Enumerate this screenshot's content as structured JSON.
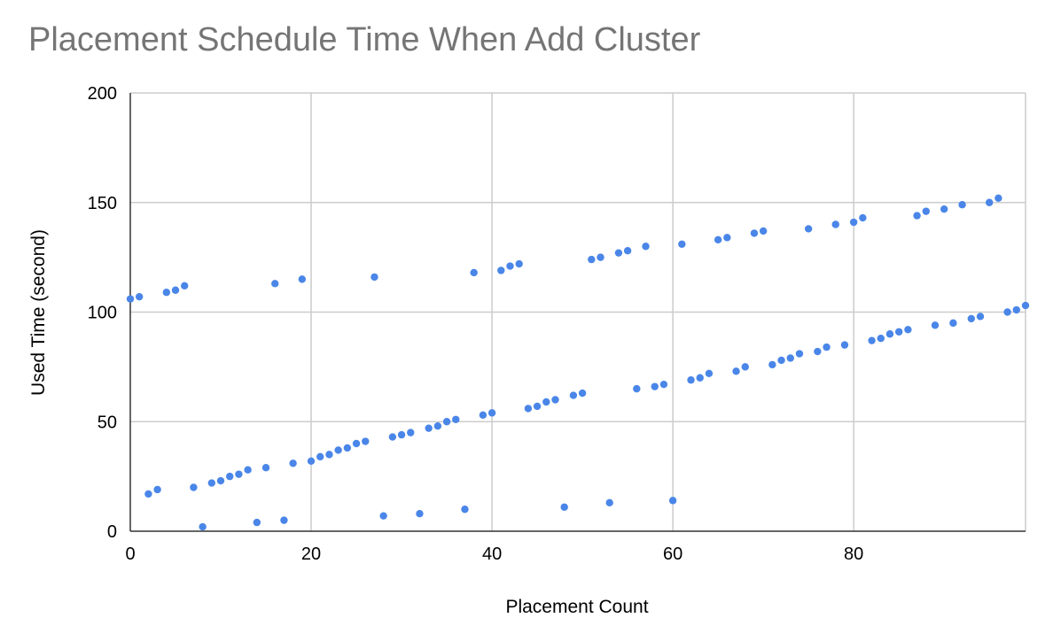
{
  "chart_data": {
    "type": "scatter",
    "title": "Placement Schedule Time When Add Cluster",
    "xlabel": "Placement Count",
    "ylabel": "Used Time (second)",
    "xlim": [
      0,
      99
    ],
    "ylim": [
      0,
      200
    ],
    "x_ticks": [
      "0",
      "20",
      "40",
      "60",
      "80"
    ],
    "y_ticks": [
      "0",
      "50",
      "100",
      "150",
      "200"
    ],
    "grid": true,
    "point_color": "#4a86e8",
    "series": [
      {
        "points": [
          [
            0,
            106
          ],
          [
            1,
            107
          ],
          [
            2,
            17
          ],
          [
            3,
            19
          ],
          [
            4,
            109
          ],
          [
            5,
            110
          ],
          [
            6,
            112
          ],
          [
            7,
            20
          ],
          [
            8,
            2
          ],
          [
            9,
            22
          ],
          [
            10,
            23
          ],
          [
            11,
            25
          ],
          [
            12,
            26
          ],
          [
            13,
            28
          ],
          [
            14,
            4
          ],
          [
            15,
            29
          ],
          [
            16,
            113
          ],
          [
            17,
            5
          ],
          [
            18,
            31
          ],
          [
            19,
            115
          ],
          [
            20,
            32
          ],
          [
            21,
            34
          ],
          [
            22,
            35
          ],
          [
            23,
            37
          ],
          [
            24,
            38
          ],
          [
            25,
            40
          ],
          [
            26,
            41
          ],
          [
            27,
            116
          ],
          [
            28,
            7
          ],
          [
            29,
            43
          ],
          [
            30,
            44
          ],
          [
            31,
            45
          ],
          [
            32,
            8
          ],
          [
            33,
            47
          ],
          [
            34,
            48
          ],
          [
            35,
            50
          ],
          [
            36,
            51
          ],
          [
            37,
            10
          ],
          [
            38,
            118
          ],
          [
            39,
            53
          ],
          [
            40,
            54
          ],
          [
            41,
            119
          ],
          [
            42,
            121
          ],
          [
            43,
            122
          ],
          [
            44,
            56
          ],
          [
            45,
            57
          ],
          [
            46,
            59
          ],
          [
            47,
            60
          ],
          [
            48,
            11
          ],
          [
            49,
            62
          ],
          [
            50,
            63
          ],
          [
            51,
            124
          ],
          [
            52,
            125
          ],
          [
            53,
            13
          ],
          [
            54,
            127
          ],
          [
            55,
            128
          ],
          [
            56,
            65
          ],
          [
            57,
            130
          ],
          [
            58,
            66
          ],
          [
            59,
            67
          ],
          [
            60,
            14
          ],
          [
            61,
            131
          ],
          [
            62,
            69
          ],
          [
            63,
            70
          ],
          [
            64,
            72
          ],
          [
            65,
            133
          ],
          [
            66,
            134
          ],
          [
            67,
            73
          ],
          [
            68,
            75
          ],
          [
            69,
            136
          ],
          [
            70,
            137
          ],
          [
            71,
            76
          ],
          [
            72,
            78
          ],
          [
            73,
            79
          ],
          [
            74,
            81
          ],
          [
            75,
            138
          ],
          [
            76,
            82
          ],
          [
            77,
            84
          ],
          [
            78,
            140
          ],
          [
            79,
            85
          ],
          [
            80,
            141
          ],
          [
            81,
            143
          ],
          [
            82,
            87
          ],
          [
            83,
            88
          ],
          [
            84,
            90
          ],
          [
            85,
            91
          ],
          [
            86,
            92
          ],
          [
            87,
            144
          ],
          [
            88,
            146
          ],
          [
            89,
            94
          ],
          [
            90,
            147
          ],
          [
            91,
            95
          ],
          [
            92,
            149
          ],
          [
            93,
            97
          ],
          [
            94,
            98
          ],
          [
            95,
            150
          ],
          [
            96,
            152
          ],
          [
            97,
            100
          ],
          [
            98,
            101
          ],
          [
            99,
            103
          ]
        ]
      }
    ]
  }
}
